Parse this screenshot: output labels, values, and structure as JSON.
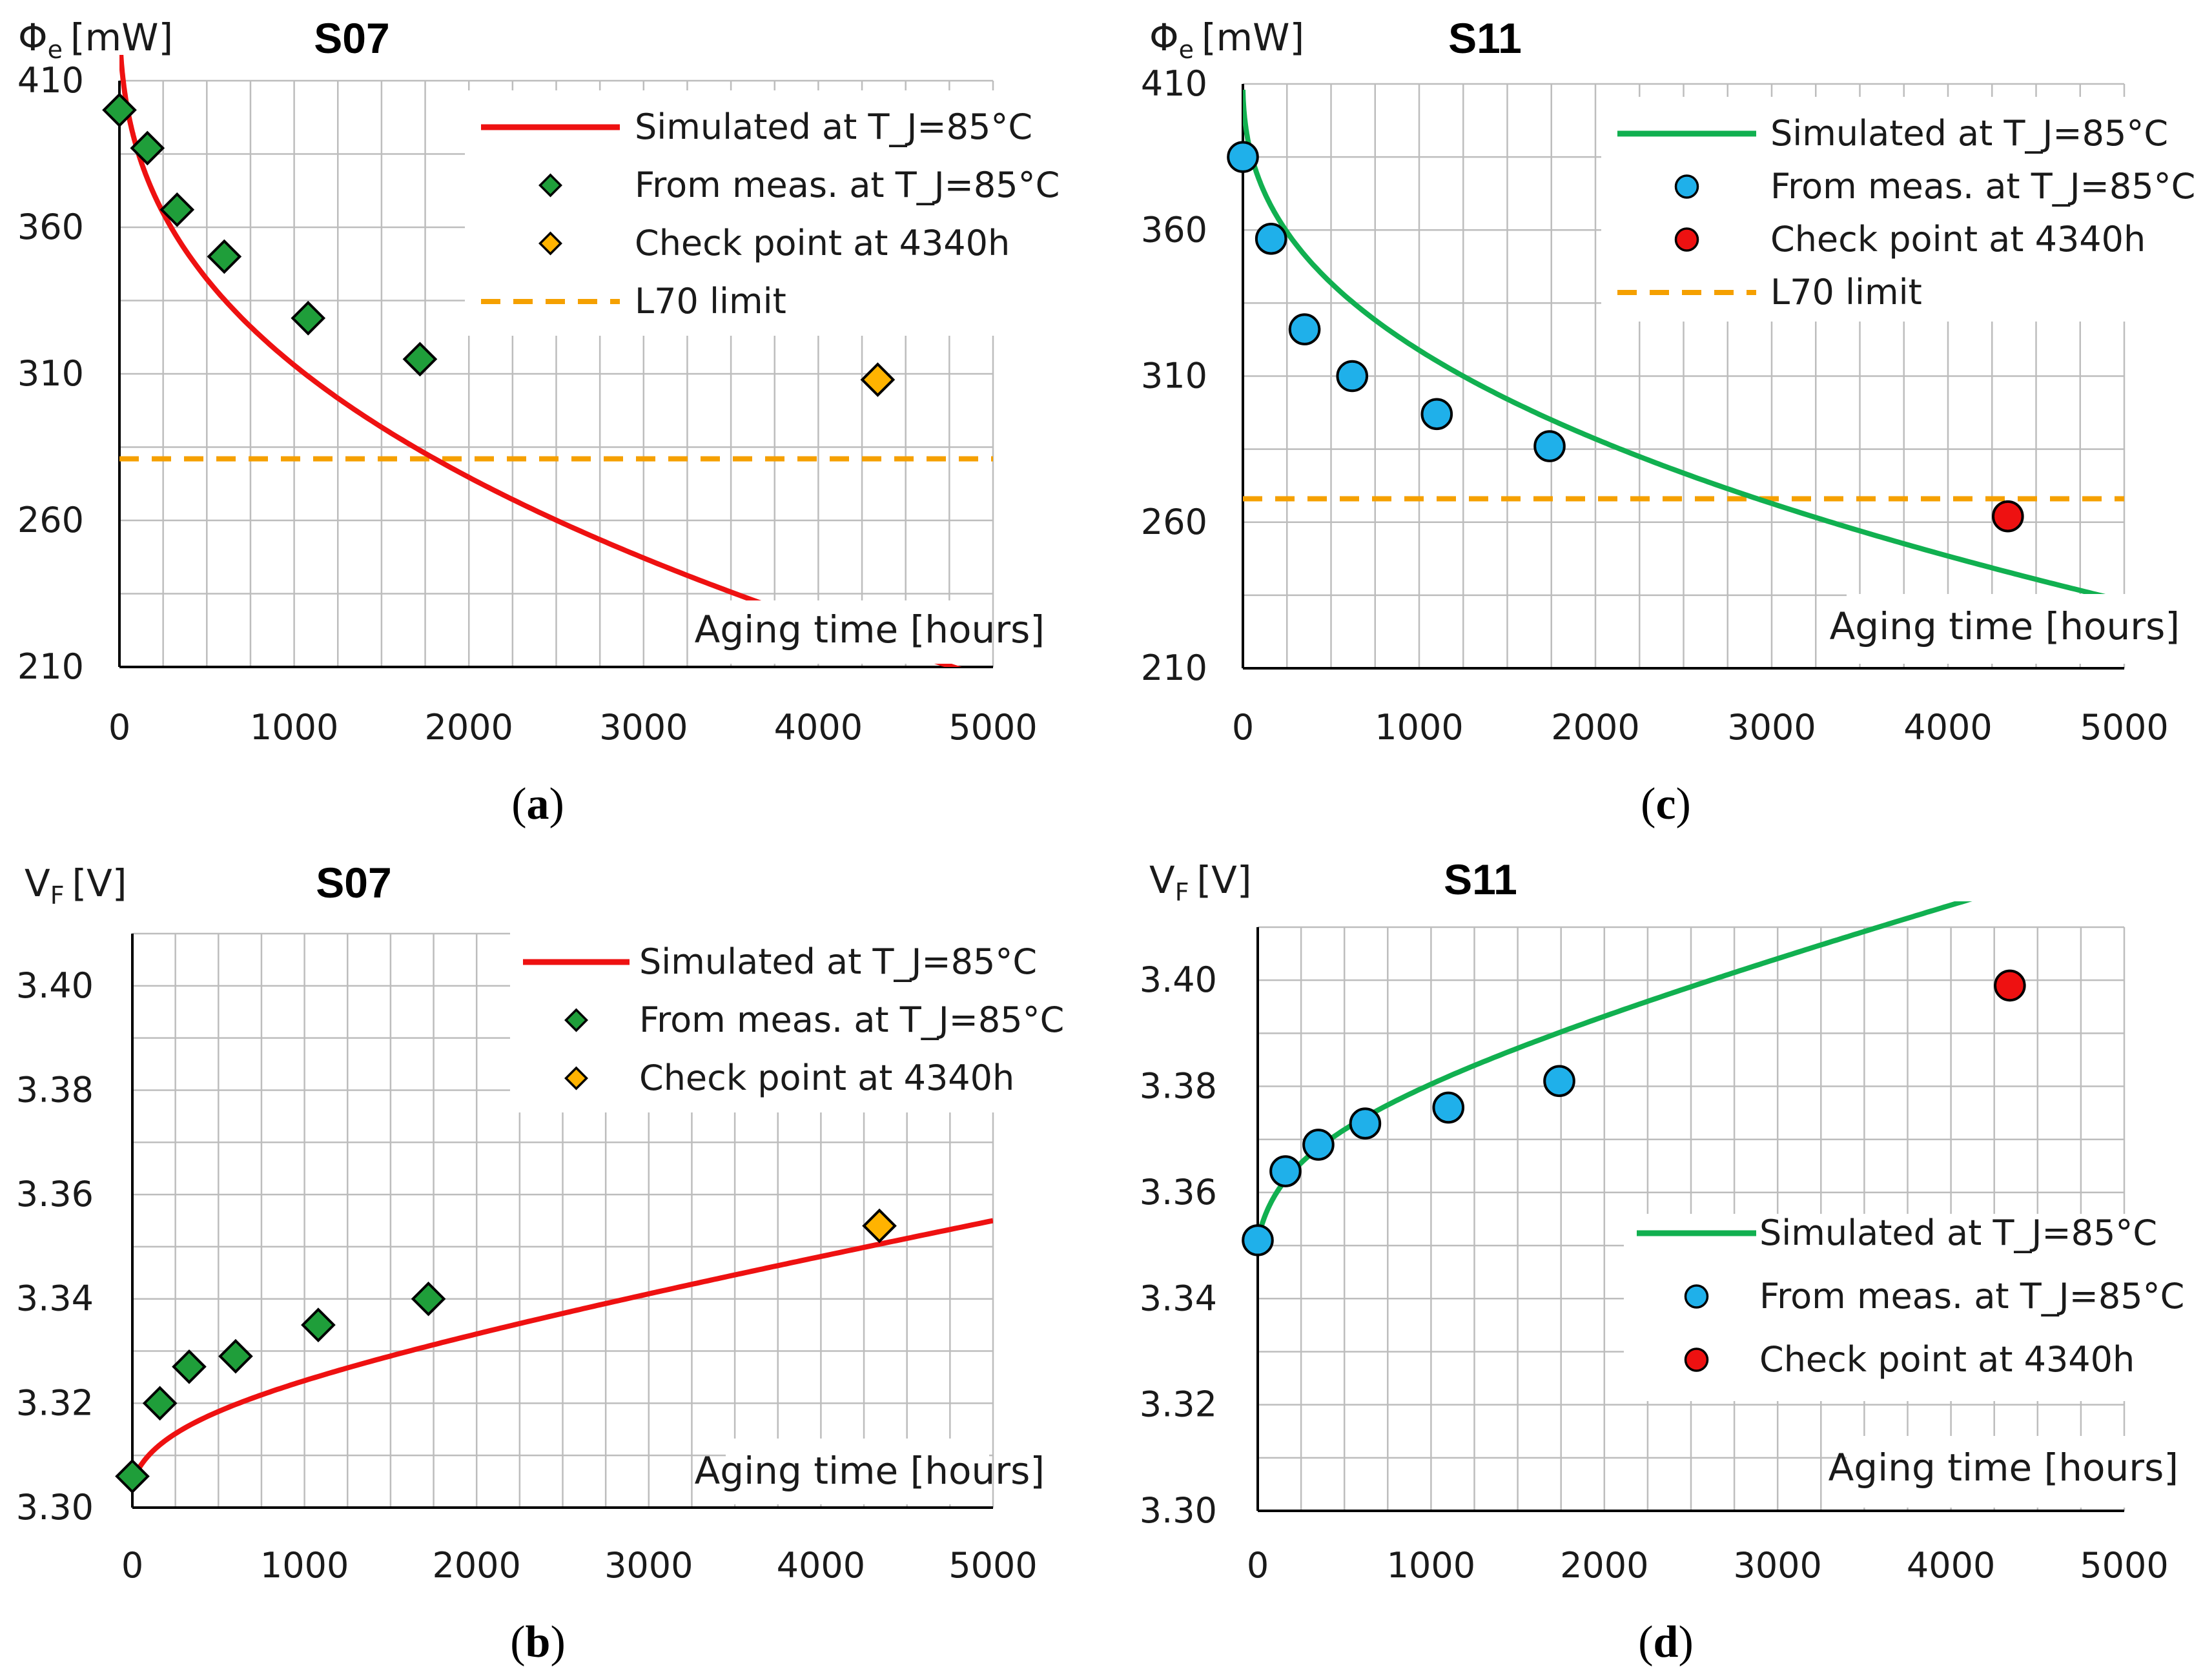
{
  "colors": {
    "red_line": "#ee1111",
    "green_line": "#11b050",
    "green_marker": "#1f9e3a",
    "orange_marker": "#ffb300",
    "blue_marker": "#1fb0ea",
    "red_marker": "#ee1111",
    "l70": "#f5a000",
    "grid": "#bdbdbd",
    "axis": "#000000"
  },
  "chart_data": [
    {
      "id": "a",
      "type": "line",
      "title": "S07",
      "ylabel_main": "Φ",
      "ylabel_sub": "e",
      "ylabel_unit": "[mW]",
      "xlabel": "Aging time [hours]",
      "caption_open": "(",
      "caption_letter": "a",
      "caption_close": ")",
      "xlim": [
        0,
        5000
      ],
      "ylim": [
        210,
        410
      ],
      "xticks": [
        0,
        1000,
        2000,
        3000,
        4000,
        5000
      ],
      "yticks": [
        210,
        260,
        310,
        360,
        410
      ],
      "xtick_labels": [
        "0",
        "1000",
        "2000",
        "3000",
        "4000",
        "5000"
      ],
      "ytick_labels": [
        "210",
        "260",
        "310",
        "360",
        "410"
      ],
      "model": {
        "kind": "power",
        "A": 440,
        "B": 9.2,
        "p": 0.38
      },
      "series": [
        {
          "name": "Simulated at T_J=85°C",
          "role": "line",
          "color": "#ee1111"
        },
        {
          "name": "From meas. at T_J=85°C",
          "role": "meas",
          "marker": "diamond",
          "color": "#1f9e3a",
          "x": [
            0,
            160,
            330,
            600,
            1080,
            1720
          ],
          "y": [
            400,
            387,
            366,
            350,
            329,
            315
          ]
        },
        {
          "name": "Check point at 4340h",
          "role": "check",
          "marker": "diamond",
          "color": "#ffb300",
          "x": [
            4340
          ],
          "y": [
            308
          ]
        },
        {
          "name": "L70 limit",
          "role": "limit",
          "color": "#f5a000",
          "y": 281
        }
      ]
    },
    {
      "id": "b",
      "type": "line",
      "title": "S07",
      "ylabel_main": "V",
      "ylabel_sub": "F",
      "ylabel_unit": "[V]",
      "xlabel": "Aging time [hours]",
      "caption_open": "(",
      "caption_letter": "b",
      "caption_close": ")",
      "xlim": [
        0,
        5000
      ],
      "ylim": [
        3.3,
        3.41
      ],
      "xticks": [
        0,
        1000,
        2000,
        3000,
        4000,
        5000
      ],
      "yticks": [
        3.3,
        3.32,
        3.34,
        3.36,
        3.38,
        3.4
      ],
      "xtick_labels": [
        "0",
        "1000",
        "2000",
        "3000",
        "4000",
        "5000"
      ],
      "ytick_labels": [
        "3.30",
        "3.32",
        "3.34",
        "3.36",
        "3.38",
        "3.40"
      ],
      "model": {
        "kind": "logsat",
        "V0": 3.305,
        "a": 0.0047,
        "c": 60,
        "b": 5.83e-06
      },
      "series": [
        {
          "name": "Simulated at T_J=85°C",
          "role": "line",
          "color": "#ee1111"
        },
        {
          "name": "From meas. at T_J=85°C",
          "role": "meas",
          "marker": "diamond",
          "color": "#1f9e3a",
          "x": [
            0,
            160,
            330,
            600,
            1080,
            1720
          ],
          "y": [
            3.306,
            3.32,
            3.327,
            3.329,
            3.335,
            3.34
          ]
        },
        {
          "name": "Check point at 4340h",
          "role": "check",
          "marker": "diamond",
          "color": "#ffb300",
          "x": [
            4340
          ],
          "y": [
            3.354
          ]
        }
      ]
    },
    {
      "id": "c",
      "type": "line",
      "title": "S11",
      "ylabel_main": "Φ",
      "ylabel_sub": "e",
      "ylabel_unit": "[mW]",
      "xlabel": "Aging time [hours]",
      "caption_open": "(",
      "caption_letter": "c",
      "caption_close": ")",
      "xlim": [
        0,
        5000
      ],
      "ylim": [
        210,
        410
      ],
      "xticks": [
        0,
        1000,
        2000,
        3000,
        4000,
        5000
      ],
      "yticks": [
        210,
        260,
        310,
        360,
        410
      ],
      "xtick_labels": [
        "0",
        "1000",
        "2000",
        "3000",
        "4000",
        "5000"
      ],
      "ytick_labels": [
        "210",
        "260",
        "310",
        "360",
        "410"
      ],
      "model": {
        "kind": "power",
        "A": 414,
        "B": 6.0,
        "p": 0.4
      },
      "series": [
        {
          "name": "Simulated at T_J=85°C",
          "role": "line",
          "color": "#11b050"
        },
        {
          "name": "From meas. at T_J=85°C",
          "role": "meas",
          "marker": "circle",
          "color": "#1fb0ea",
          "x": [
            0,
            160,
            350,
            620,
            1100,
            1740
          ],
          "y": [
            385,
            357,
            326,
            310,
            297,
            286
          ]
        },
        {
          "name": "Check point at 4340h",
          "role": "check",
          "marker": "circle",
          "color": "#ee1111",
          "x": [
            4340
          ],
          "y": [
            262
          ]
        },
        {
          "name": "L70 limit",
          "role": "limit",
          "color": "#f5a000",
          "y": 268
        }
      ]
    },
    {
      "id": "d",
      "type": "line",
      "title": "S11",
      "ylabel_main": "V",
      "ylabel_sub": "F",
      "ylabel_unit": "[V]",
      "xlabel": "Aging time [hours]",
      "caption_open": "(",
      "caption_letter": "d",
      "caption_close": ")",
      "xlim": [
        0,
        5000
      ],
      "ylim": [
        3.3,
        3.41
      ],
      "xticks": [
        0,
        1000,
        2000,
        3000,
        4000,
        5000
      ],
      "yticks": [
        3.3,
        3.32,
        3.34,
        3.36,
        3.38,
        3.4
      ],
      "xtick_labels": [
        "0",
        "1000",
        "2000",
        "3000",
        "4000",
        "5000"
      ],
      "ytick_labels": [
        "3.30",
        "3.32",
        "3.34",
        "3.36",
        "3.38",
        "3.40"
      ],
      "model": {
        "kind": "logsat",
        "V0": 3.351,
        "a": 0.007,
        "c": 50,
        "b": 8.1e-06
      },
      "series": [
        {
          "name": "Simulated at T_J=85°C",
          "role": "line",
          "color": "#11b050"
        },
        {
          "name": "From meas. at T_J=85°C",
          "role": "meas",
          "marker": "circle",
          "color": "#1fb0ea",
          "x": [
            0,
            160,
            350,
            620,
            1100,
            1740
          ],
          "y": [
            3.351,
            3.364,
            3.369,
            3.373,
            3.376,
            3.381
          ]
        },
        {
          "name": "Check point at 4340h",
          "role": "check",
          "marker": "circle",
          "color": "#ee1111",
          "x": [
            4340
          ],
          "y": [
            3.399
          ]
        }
      ]
    }
  ]
}
